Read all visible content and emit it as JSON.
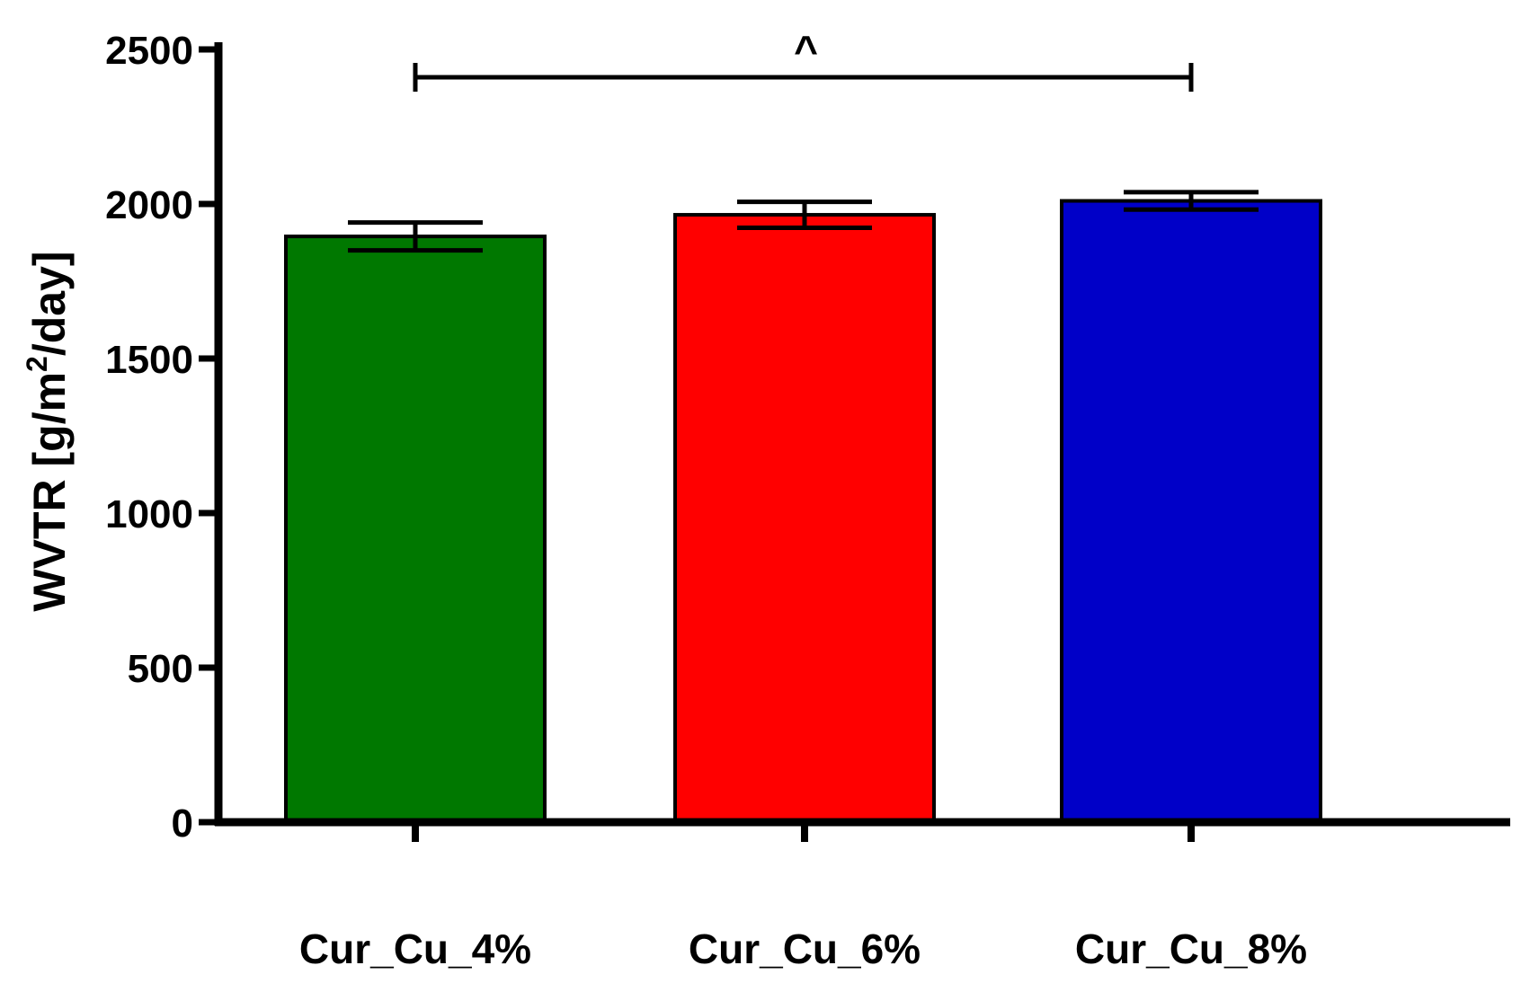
{
  "chart_data": {
    "type": "bar",
    "categories": [
      "Cur_Cu_4%",
      "Cur_Cu_6%",
      "Cur_Cu_8%"
    ],
    "values": [
      1895,
      1965,
      2010
    ],
    "errors": [
      45,
      42,
      28
    ],
    "colors": [
      "#007800",
      "#ff0000",
      "#0000c8"
    ],
    "ylabel_main": "WVTR [g/m",
    "ylabel_sup": "2",
    "ylabel_end": "/day]",
    "ylim": [
      0,
      2500
    ],
    "yticks": [
      0,
      500,
      1000,
      1500,
      2000,
      2500
    ],
    "annotation": {
      "text": "^",
      "from": "Cur_Cu_4%",
      "to": "Cur_Cu_8%"
    }
  }
}
